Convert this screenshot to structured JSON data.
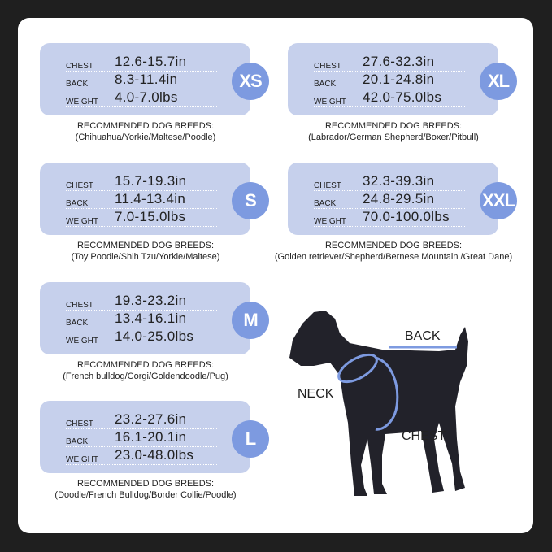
{
  "labels": {
    "chest": "CHEST",
    "back": "BACK",
    "weight": "WEIGHT",
    "recommended": "RECOMMENDED DOG BREEDS:"
  },
  "colors": {
    "card": "#c6d0ec",
    "badge": "#7d9ae0",
    "accent_line": "#7d9ae0"
  },
  "sizes": [
    {
      "size": "XS",
      "chest": "12.6-15.7in",
      "back": "8.3-11.4in",
      "weight": "4.0-7.0lbs",
      "breeds": "(Chihuahua/Yorkie/Maltese/Poodle)"
    },
    {
      "size": "XL",
      "chest": "27.6-32.3in",
      "back": "20.1-24.8in",
      "weight": "42.0-75.0lbs",
      "breeds": "(Labrador/German Shepherd/Boxer/Pitbull)"
    },
    {
      "size": "S",
      "chest": "15.7-19.3in",
      "back": "11.4-13.4in",
      "weight": "7.0-15.0lbs",
      "breeds": "(Toy Poodle/Shih Tzu/Yorkie/Maltese)"
    },
    {
      "size": "XXL",
      "chest": "32.3-39.3in",
      "back": "24.8-29.5in",
      "weight": "70.0-100.0lbs",
      "breeds": "(Golden retriever/Shepherd/Bernese Mountain /Great Dane)"
    },
    {
      "size": "M",
      "chest": "19.3-23.2in",
      "back": "13.4-16.1in",
      "weight": "14.0-25.0lbs",
      "breeds": "(French bulldog/Corgi/Goldendoodle/Pug)"
    },
    {
      "size": "L",
      "chest": "23.2-27.6in",
      "back": "16.1-20.1in",
      "weight": "23.0-48.0lbs",
      "breeds": "(Doodle/French Bulldog/Border Collie/Poodle)"
    }
  ],
  "diagram": {
    "back": "BACK",
    "neck": "NECK",
    "chest": "CHEST"
  }
}
